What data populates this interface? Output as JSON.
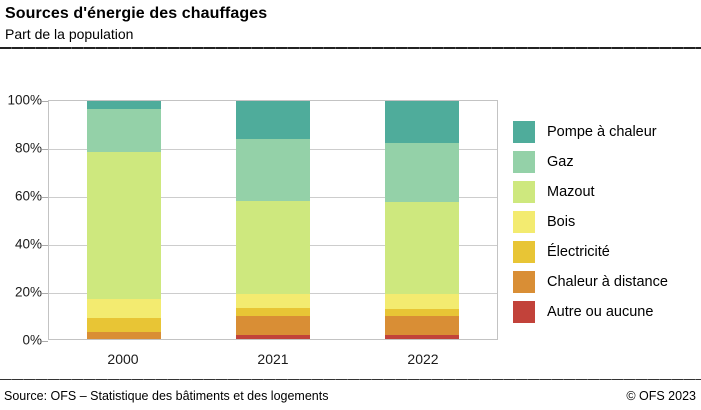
{
  "header": {
    "title": "Sources d'énergie des chauffages",
    "subtitle": "Part de la population"
  },
  "footer": {
    "source": "Source: OFS – Statistique des bâtiments et des logements",
    "copyright": "© OFS 2023"
  },
  "chart_data": {
    "type": "bar",
    "stacked": true,
    "title": "Sources d'énergie des chauffages",
    "subtitle": "Part de la population",
    "categories": [
      "2000",
      "2021",
      "2022"
    ],
    "series": [
      {
        "name": "Pompe à chaleur",
        "color": "#4FAC9B",
        "values": [
          3.5,
          16,
          17.5
        ]
      },
      {
        "name": "Gaz",
        "color": "#94D1A8",
        "values": [
          18,
          26,
          25
        ]
      },
      {
        "name": "Mazout",
        "color": "#CEE87E",
        "values": [
          61.5,
          39,
          38.5
        ]
      },
      {
        "name": "Bois",
        "color": "#F3EB70",
        "values": [
          8,
          6,
          6.5
        ]
      },
      {
        "name": "Électricité",
        "color": "#E8C535",
        "values": [
          6,
          3.5,
          3
        ]
      },
      {
        "name": "Chaleur à distance",
        "color": "#D98E35",
        "values": [
          3,
          8,
          8
        ]
      },
      {
        "name": "Autre ou aucune",
        "color": "#C2423A",
        "values": [
          0,
          1.5,
          1.5
        ]
      }
    ],
    "xlabel": "",
    "ylabel": "",
    "ylim": [
      0,
      100
    ],
    "yticks": [
      "100%",
      "80%",
      "60%",
      "40%",
      "20%",
      "0%"
    ],
    "grid": true,
    "legend_position": "right",
    "colors": {
      "gridline": "#cdcdcd",
      "frame": "#c3c3c3",
      "rule": "#222222"
    }
  }
}
